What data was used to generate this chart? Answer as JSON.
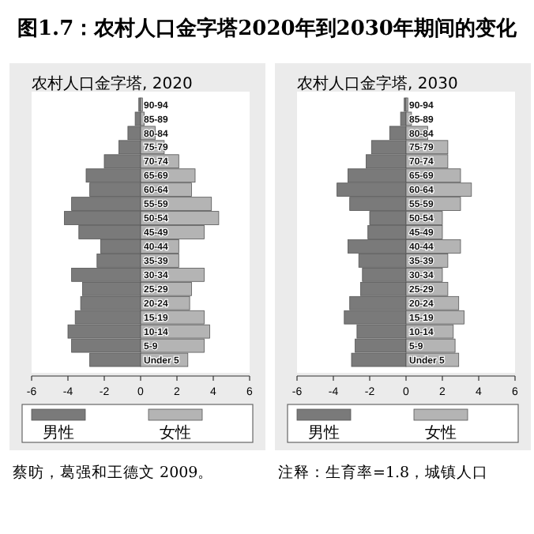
{
  "chart_data": [
    {
      "type": "bar",
      "title": "图1.7：农村人口金字塔2020年到2030年期间的变化",
      "subtitle": "农村人口金字塔, 2020",
      "orientation": "horizontal",
      "stacked": true,
      "legend": "bottom",
      "categories": [
        "90-94",
        "85-89",
        "80-84",
        "75-79",
        "70-74",
        "65-69",
        "60-64",
        "55-59",
        "50-54",
        "45-49",
        "40-44",
        "35-39",
        "30-34",
        "25-29",
        "20-24",
        "15-19",
        "10-14",
        "5-9",
        "Under 5"
      ],
      "series": [
        {
          "name": "男性",
          "color": "#7a7a7a",
          "values": [
            -0.1,
            -0.3,
            -0.7,
            -1.2,
            -2.0,
            -3.0,
            -2.8,
            -3.8,
            -4.2,
            -3.4,
            -2.2,
            -2.4,
            -3.8,
            -3.2,
            -3.3,
            -3.6,
            -4.0,
            -3.8,
            -2.8
          ]
        },
        {
          "name": "女性",
          "color": "#b4b4b4",
          "values": [
            0.1,
            0.2,
            0.8,
            1.3,
            2.1,
            3.0,
            2.8,
            3.9,
            4.3,
            3.5,
            2.1,
            2.1,
            3.5,
            2.8,
            2.7,
            3.5,
            3.8,
            3.5,
            2.6
          ]
        }
      ],
      "xlim": [
        -6,
        6
      ],
      "xticks": [
        -6,
        -4,
        -2,
        0,
        2,
        4,
        6
      ],
      "annotations": [
        "蔡昉，葛强和王德文 2009。"
      ]
    },
    {
      "type": "bar",
      "subtitle": "农村人口金字塔, 2030",
      "orientation": "horizontal",
      "stacked": true,
      "legend": "bottom",
      "categories": [
        "90-94",
        "85-89",
        "80-84",
        "75-79",
        "70-74",
        "65-69",
        "60-64",
        "55-59",
        "50-54",
        "45-49",
        "40-44",
        "35-39",
        "30-34",
        "25-29",
        "20-24",
        "15-19",
        "10-14",
        "5-9",
        "Under 5"
      ],
      "series": [
        {
          "name": "男性",
          "color": "#7a7a7a",
          "values": [
            -0.1,
            -0.3,
            -0.9,
            -1.9,
            -2.2,
            -3.2,
            -3.8,
            -3.1,
            -2.0,
            -2.1,
            -3.2,
            -2.6,
            -2.4,
            -2.5,
            -3.1,
            -3.4,
            -2.7,
            -2.8,
            -3.0
          ]
        },
        {
          "name": "女性",
          "color": "#b4b4b4",
          "values": [
            0.1,
            0.3,
            1.2,
            2.3,
            2.3,
            3.0,
            3.6,
            3.0,
            2.0,
            2.0,
            3.0,
            2.3,
            2.0,
            2.3,
            2.9,
            3.2,
            2.6,
            2.7,
            2.9
          ]
        }
      ],
      "xlim": [
        -6,
        6
      ],
      "xticks": [
        -6,
        -4,
        -2,
        0,
        2,
        4,
        6
      ],
      "annotations": [
        "注释：生育率=1.8，城镇人口"
      ]
    }
  ]
}
